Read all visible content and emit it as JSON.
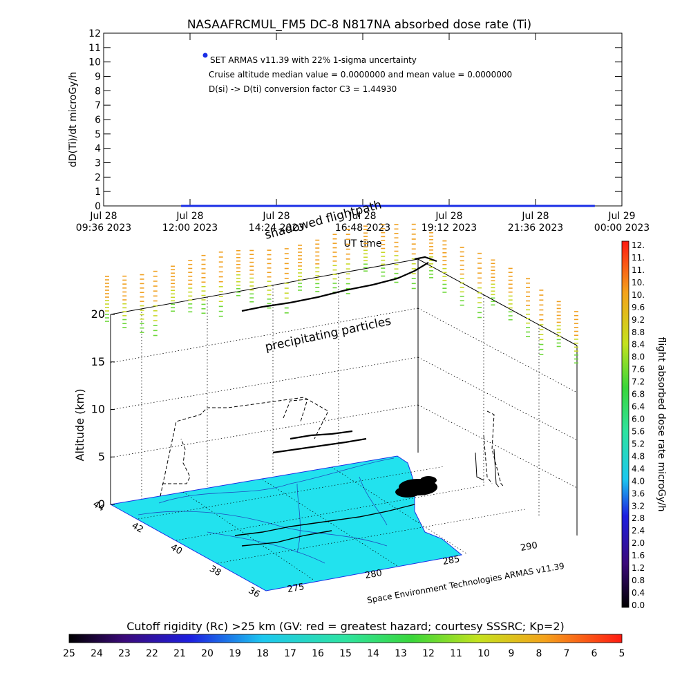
{
  "chart_data": [
    {
      "type": "scatter",
      "title": "NASAAFRCMUL_FM5 DC-8   N817NA absorbed dose rate (Ti)",
      "xlabel": "UT time",
      "ylabel": "dD(Ti)/dt microGy/h",
      "ylim": [
        0,
        12
      ],
      "yticks": [
        "0",
        "1",
        "2",
        "3",
        "4",
        "5",
        "6",
        "7",
        "8",
        "9",
        "10",
        "11",
        "12"
      ],
      "xticks": [
        {
          "l1": "Jul 28",
          "l2": "09:36 2023"
        },
        {
          "l1": "Jul 28",
          "l2": "12:00 2023"
        },
        {
          "l1": "Jul 28",
          "l2": "14:24 2023"
        },
        {
          "l1": "Jul 28",
          "l2": "16:48 2023"
        },
        {
          "l1": "Jul 28",
          "l2": "19:12 2023"
        },
        {
          "l1": "Jul 28",
          "l2": "21:36 2023"
        },
        {
          "l1": "Jul 29",
          "l2": "00:00 2023"
        }
      ],
      "x_range_hours": [
        9.6,
        24.0
      ],
      "series": [
        {
          "name": "SET ARMAS v11.39 with 22% 1-sigma uncertainty",
          "color": "#1a2ee6",
          "x_start_hours": 11.8,
          "x_end_hours": 23.2,
          "y": 0
        }
      ],
      "annotations": [
        "Cruise altitude median value = 0.0000000 and mean value = 0.0000000",
        "D(si) -> D(ti) conversion factor C3 = 1.44930"
      ]
    },
    {
      "type": "scatter",
      "zlabel": "Altitude (km)",
      "zticks": [
        "0",
        "5",
        "10",
        "15",
        "20"
      ],
      "lat_ticks": [
        "36",
        "38",
        "40",
        "42",
        "44"
      ],
      "lon_ticks": [
        "275",
        "280",
        "285",
        "290"
      ],
      "labels": [
        "shadowed flightpath",
        "precipitating particles"
      ],
      "footer_credit": "Space Environment Technologies ARMAS v11.39"
    },
    {
      "type": "heatmap",
      "colorbar_label": "flight absorbed dose rate microGy/h",
      "ticks": [
        "0.0",
        "0.4",
        "0.8",
        "1.2",
        "1.6",
        "2.0",
        "2.4",
        "2.8",
        "3.2",
        "3.6",
        "4.0",
        "4.4",
        "4.8",
        "5.2",
        "5.6",
        "6.0",
        "6.4",
        "6.8",
        "7.2",
        "7.6",
        "8.0",
        "8.4",
        "8.8",
        "9.2",
        "9.6",
        "10.",
        "10.",
        "11.",
        "11.",
        "12."
      ],
      "range": [
        0,
        12
      ]
    },
    {
      "type": "heatmap",
      "label": "Cutoff rigidity (Rc) >25 km (GV: red = greatest hazard; courtesy SSSRC; Kp=2)",
      "ticks": [
        "25",
        "24",
        "23",
        "22",
        "21",
        "20",
        "19",
        "18",
        "17",
        "16",
        "15",
        "14",
        "13",
        "12",
        "11",
        "10",
        "9",
        "8",
        "7",
        "6",
        "5"
      ],
      "range": [
        25,
        5
      ]
    }
  ]
}
